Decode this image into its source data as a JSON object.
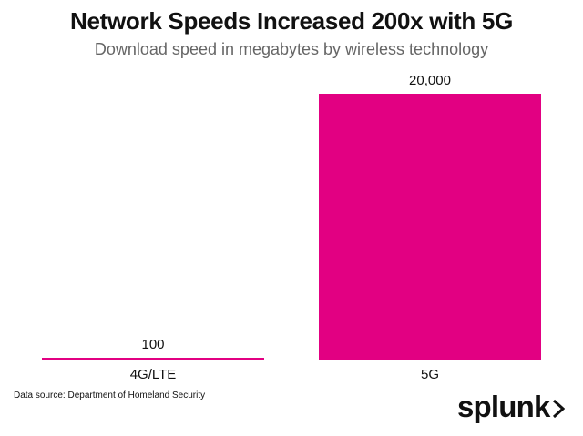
{
  "chart_data": {
    "type": "bar",
    "title": "Network Speeds Increased 200x with 5G",
    "subtitle": "Download speed in megabytes by wireless technology",
    "categories": [
      "4G/LTE",
      "5G"
    ],
    "values": [
      100,
      20000
    ],
    "value_labels": [
      "100",
      "20,000"
    ],
    "xlabel": "",
    "ylabel": "",
    "ylim": [
      0,
      20000
    ],
    "grid": false,
    "bar_color": "#E20082"
  },
  "source": "Data source: Department of Homeland Security",
  "brand": {
    "name": "splunk",
    "icon": "chevron-right-icon"
  }
}
